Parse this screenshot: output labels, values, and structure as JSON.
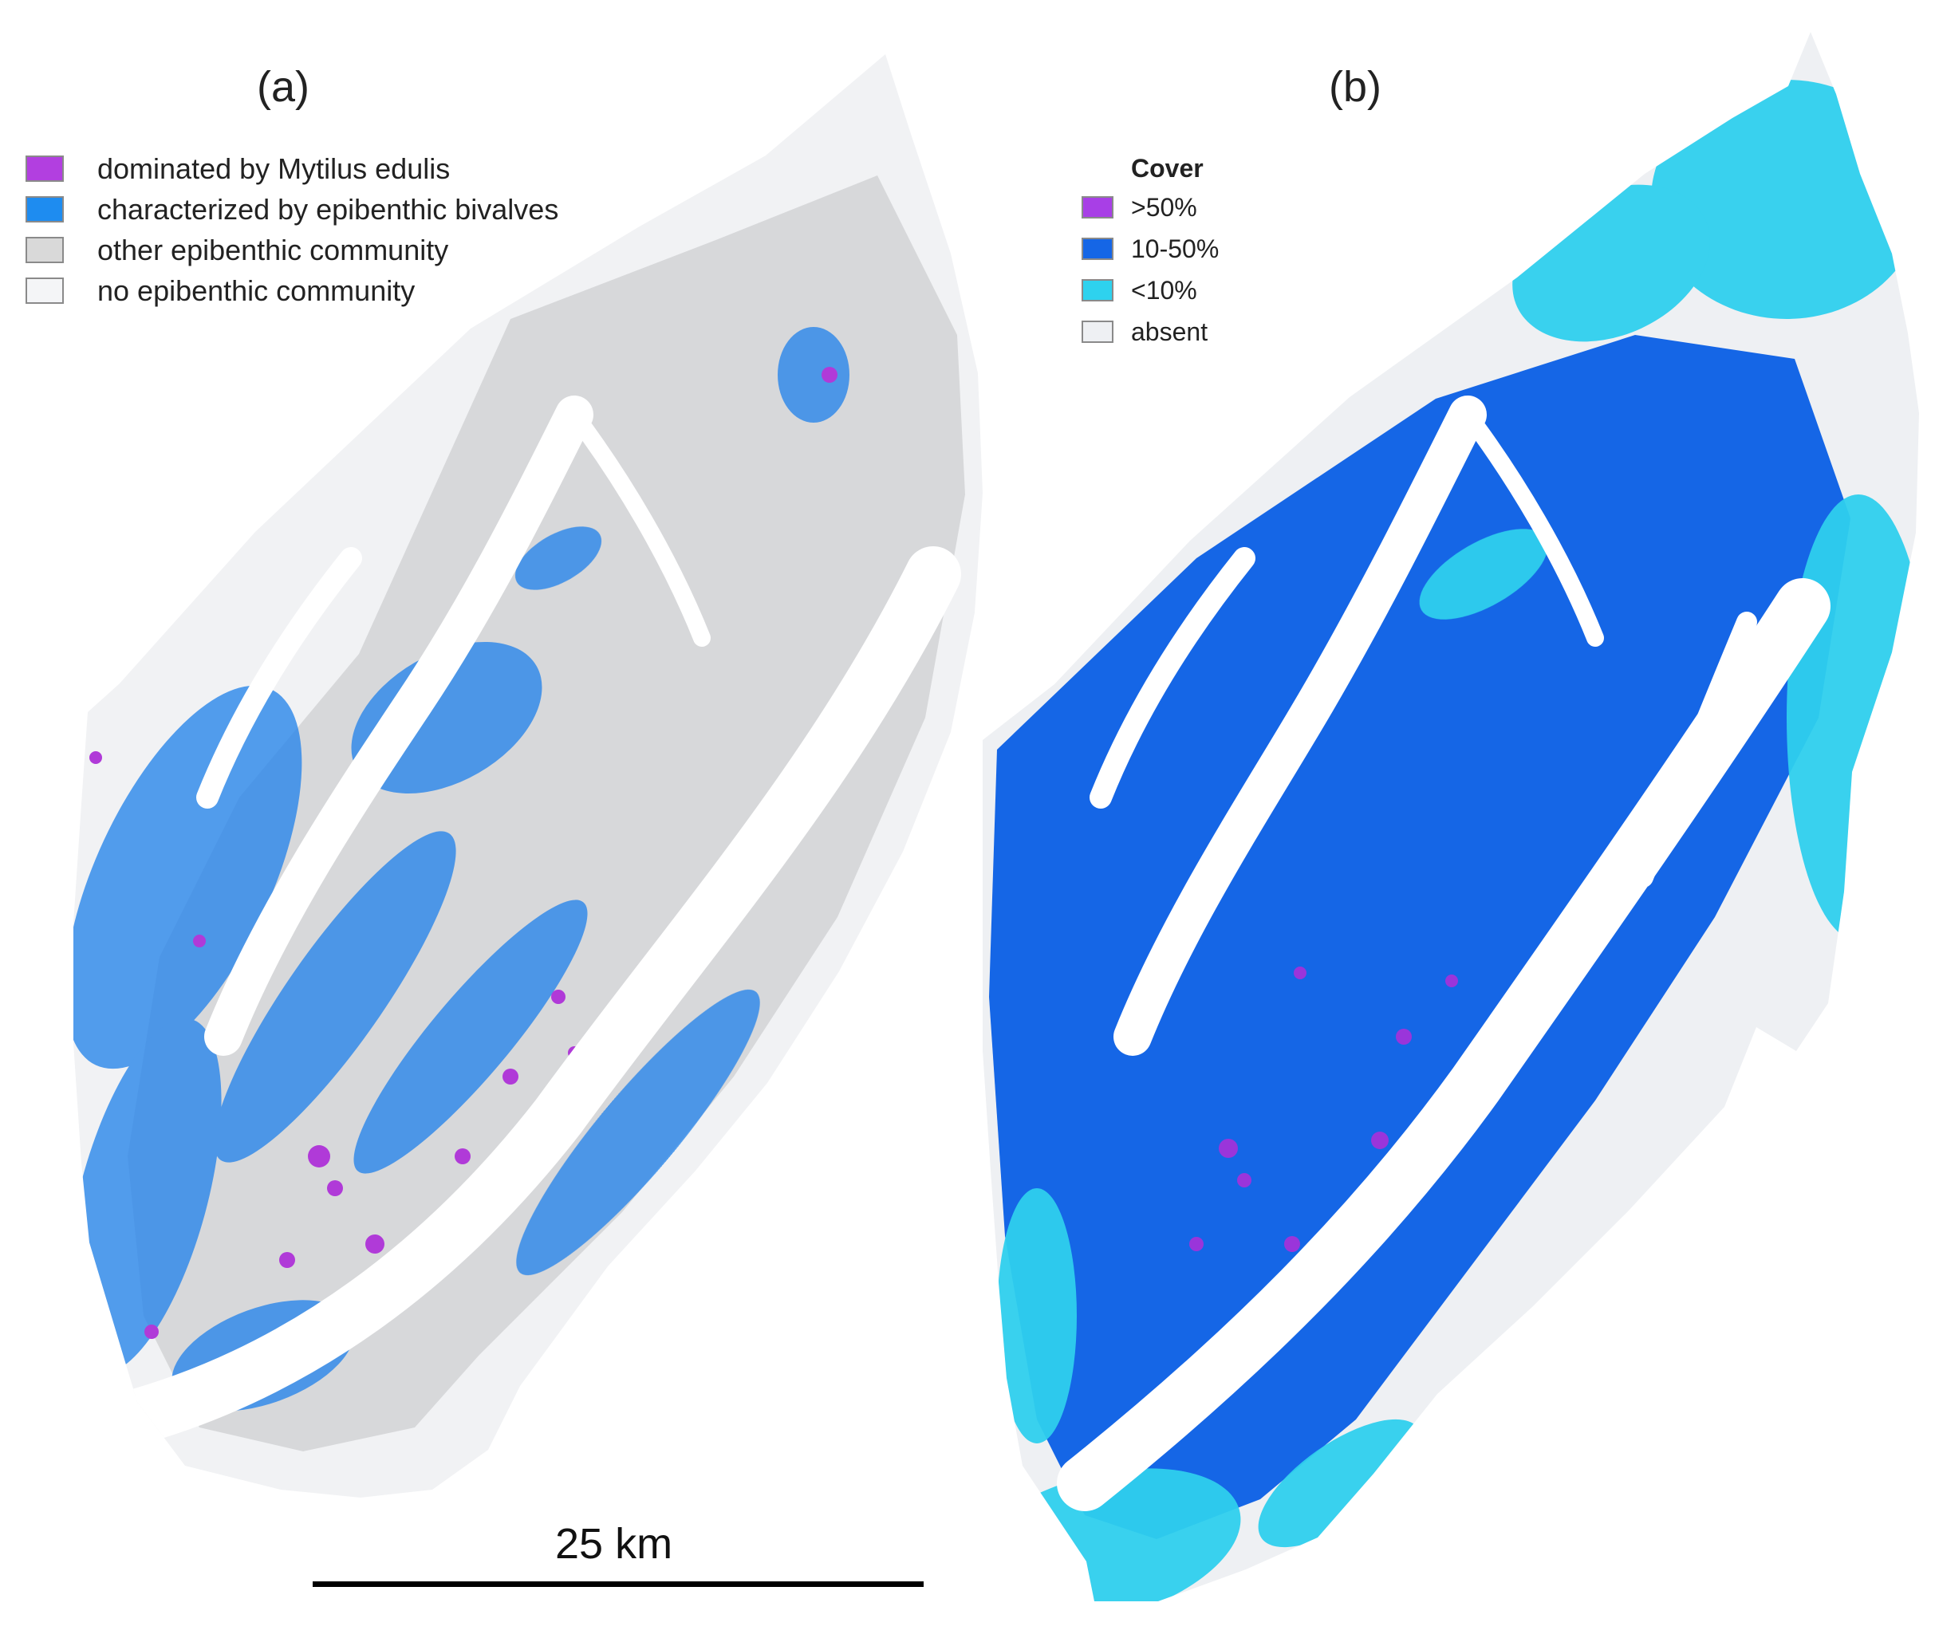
{
  "panel_a": {
    "label": "(a)",
    "legend": [
      {
        "label": "dominated by Mytilus edulis",
        "color": "#b23fe0"
      },
      {
        "label": "characterized by epibenthic bivalves",
        "color": "#1e8cf0"
      },
      {
        "label": "other epibenthic community",
        "color": "#d9d9d9"
      },
      {
        "label": "no epibenthic community",
        "color": "#f4f5f7"
      }
    ],
    "map_colors": {
      "background": "#f1f2f4",
      "other": "#d7d8da",
      "bivalves": "#2a86ea",
      "mytilus": "#b03ad8",
      "channel": "#ffffff"
    }
  },
  "panel_b": {
    "label": "(b)",
    "legend_title": "Cover",
    "legend": [
      {
        "label": ">50%",
        "color": "#a83fe6"
      },
      {
        "label": "10-50%",
        "color": "#1566e6"
      },
      {
        "label": "<10%",
        "color": "#2ed2ee"
      },
      {
        "label": "absent",
        "color": "#eef0f3"
      }
    ],
    "map_colors": {
      "background": "#eef0f3",
      "mid": "#1566e6",
      "low": "#2fcfee",
      "high": "#9a35da",
      "channel": "#ffffff"
    }
  },
  "scale": {
    "label": "25 km"
  }
}
